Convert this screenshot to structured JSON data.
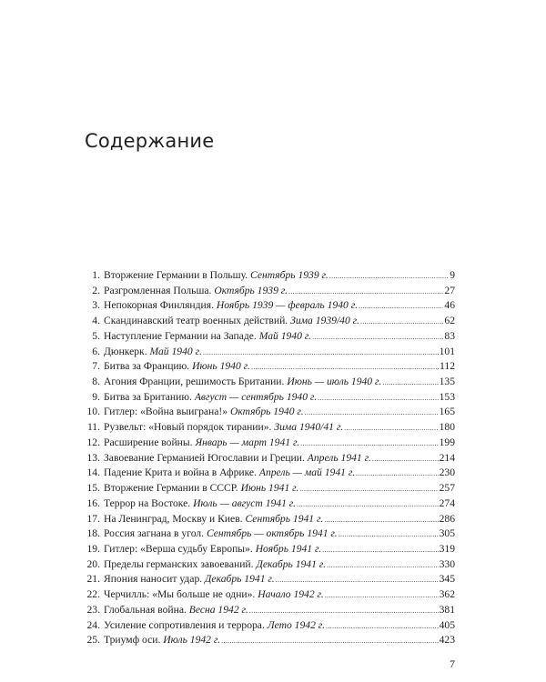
{
  "title": "Содержание",
  "entries": [
    {
      "num": "1.",
      "title": "Вторжение Германии в Польшу.",
      "date": "Сентябрь 1939 г.",
      "page": "9"
    },
    {
      "num": "2.",
      "title": "Разгромленная Польша.",
      "date": "Октябрь 1939 г.",
      "page": "27"
    },
    {
      "num": "3.",
      "title": "Непокорная Финляндия.",
      "date": "Ноябрь 1939 — февраль 1940 г.",
      "page": "46"
    },
    {
      "num": "4.",
      "title": "Скандинавский театр военных действий.",
      "date": "Зима 1939/40 г.",
      "page": "62"
    },
    {
      "num": "5.",
      "title": "Наступление Германии на Западе.",
      "date": "Май 1940 г.",
      "page": "83"
    },
    {
      "num": "6.",
      "title": "Дюнкерк.",
      "date": "Май 1940 г.",
      "page": "101"
    },
    {
      "num": "7.",
      "title": "Битва за Францию.",
      "date": "Июнь 1940 г.",
      "page": "112"
    },
    {
      "num": "8.",
      "title": "Агония Франции, решимость Британии.",
      "date": "Июнь — июль 1940 г.",
      "page": "135"
    },
    {
      "num": "9.",
      "title": "Битва за Британию.",
      "date": "Август — сентябрь 1940 г.",
      "page": "153"
    },
    {
      "num": "10.",
      "title": "Гитлер: «Война выиграна!»",
      "date": "Октябрь 1940 г.",
      "page": "165"
    },
    {
      "num": "11.",
      "title": "Рузвельт: «Новый порядок тирании».",
      "date": "Зима 1940/41 г.",
      "page": "180"
    },
    {
      "num": "12.",
      "title": "Расширение войны.",
      "date": "Январь — март 1941 г.",
      "page": "199"
    },
    {
      "num": "13.",
      "title": "Завоевание Германией Югославии и Греции.",
      "date": "Апрель 1941 г.",
      "page": "214"
    },
    {
      "num": "14.",
      "title": "Падение Крита и война в Африке.",
      "date": "Апрель — май 1941 г.",
      "page": "230"
    },
    {
      "num": "15.",
      "title": "Вторжение Германии в СССР.",
      "date": "Июнь 1941 г.",
      "page": "257"
    },
    {
      "num": "16.",
      "title": "Террор на Востоке.",
      "date": "Июль — август 1941 г.",
      "page": "274"
    },
    {
      "num": "17.",
      "title": "На Ленинград, Москву и Киев.",
      "date": "Сентябрь 1941 г.",
      "page": "286"
    },
    {
      "num": "18.",
      "title": "Россия загнана в угол.",
      "date": "Сентябрь — октябрь 1941 г.",
      "page": "305"
    },
    {
      "num": "19.",
      "title": "Гитлер: «Верша судьбу Европы».",
      "date": "Ноябрь 1941 г.",
      "page": "319"
    },
    {
      "num": "20.",
      "title": "Пределы германских завоеваний.",
      "date": "Декабрь 1941 г.",
      "page": "330"
    },
    {
      "num": "21.",
      "title": "Япония наносит удар.",
      "date": "Декабрь 1941 г.",
      "page": "345"
    },
    {
      "num": "22.",
      "title": "Черчилль: «Мы больше не одни».",
      "date": "Начало 1942 г.",
      "page": "362"
    },
    {
      "num": "23.",
      "title": "Глобальная война.",
      "date": "Весна 1942 г.",
      "page": "381"
    },
    {
      "num": "24.",
      "title": "Усиление сопротивления и террора.",
      "date": "Лето 1942 г.",
      "page": "405"
    },
    {
      "num": "25.",
      "title": "Триумф оси.",
      "date": "Июль 1942 г.",
      "page": "423"
    }
  ],
  "folio": "7"
}
